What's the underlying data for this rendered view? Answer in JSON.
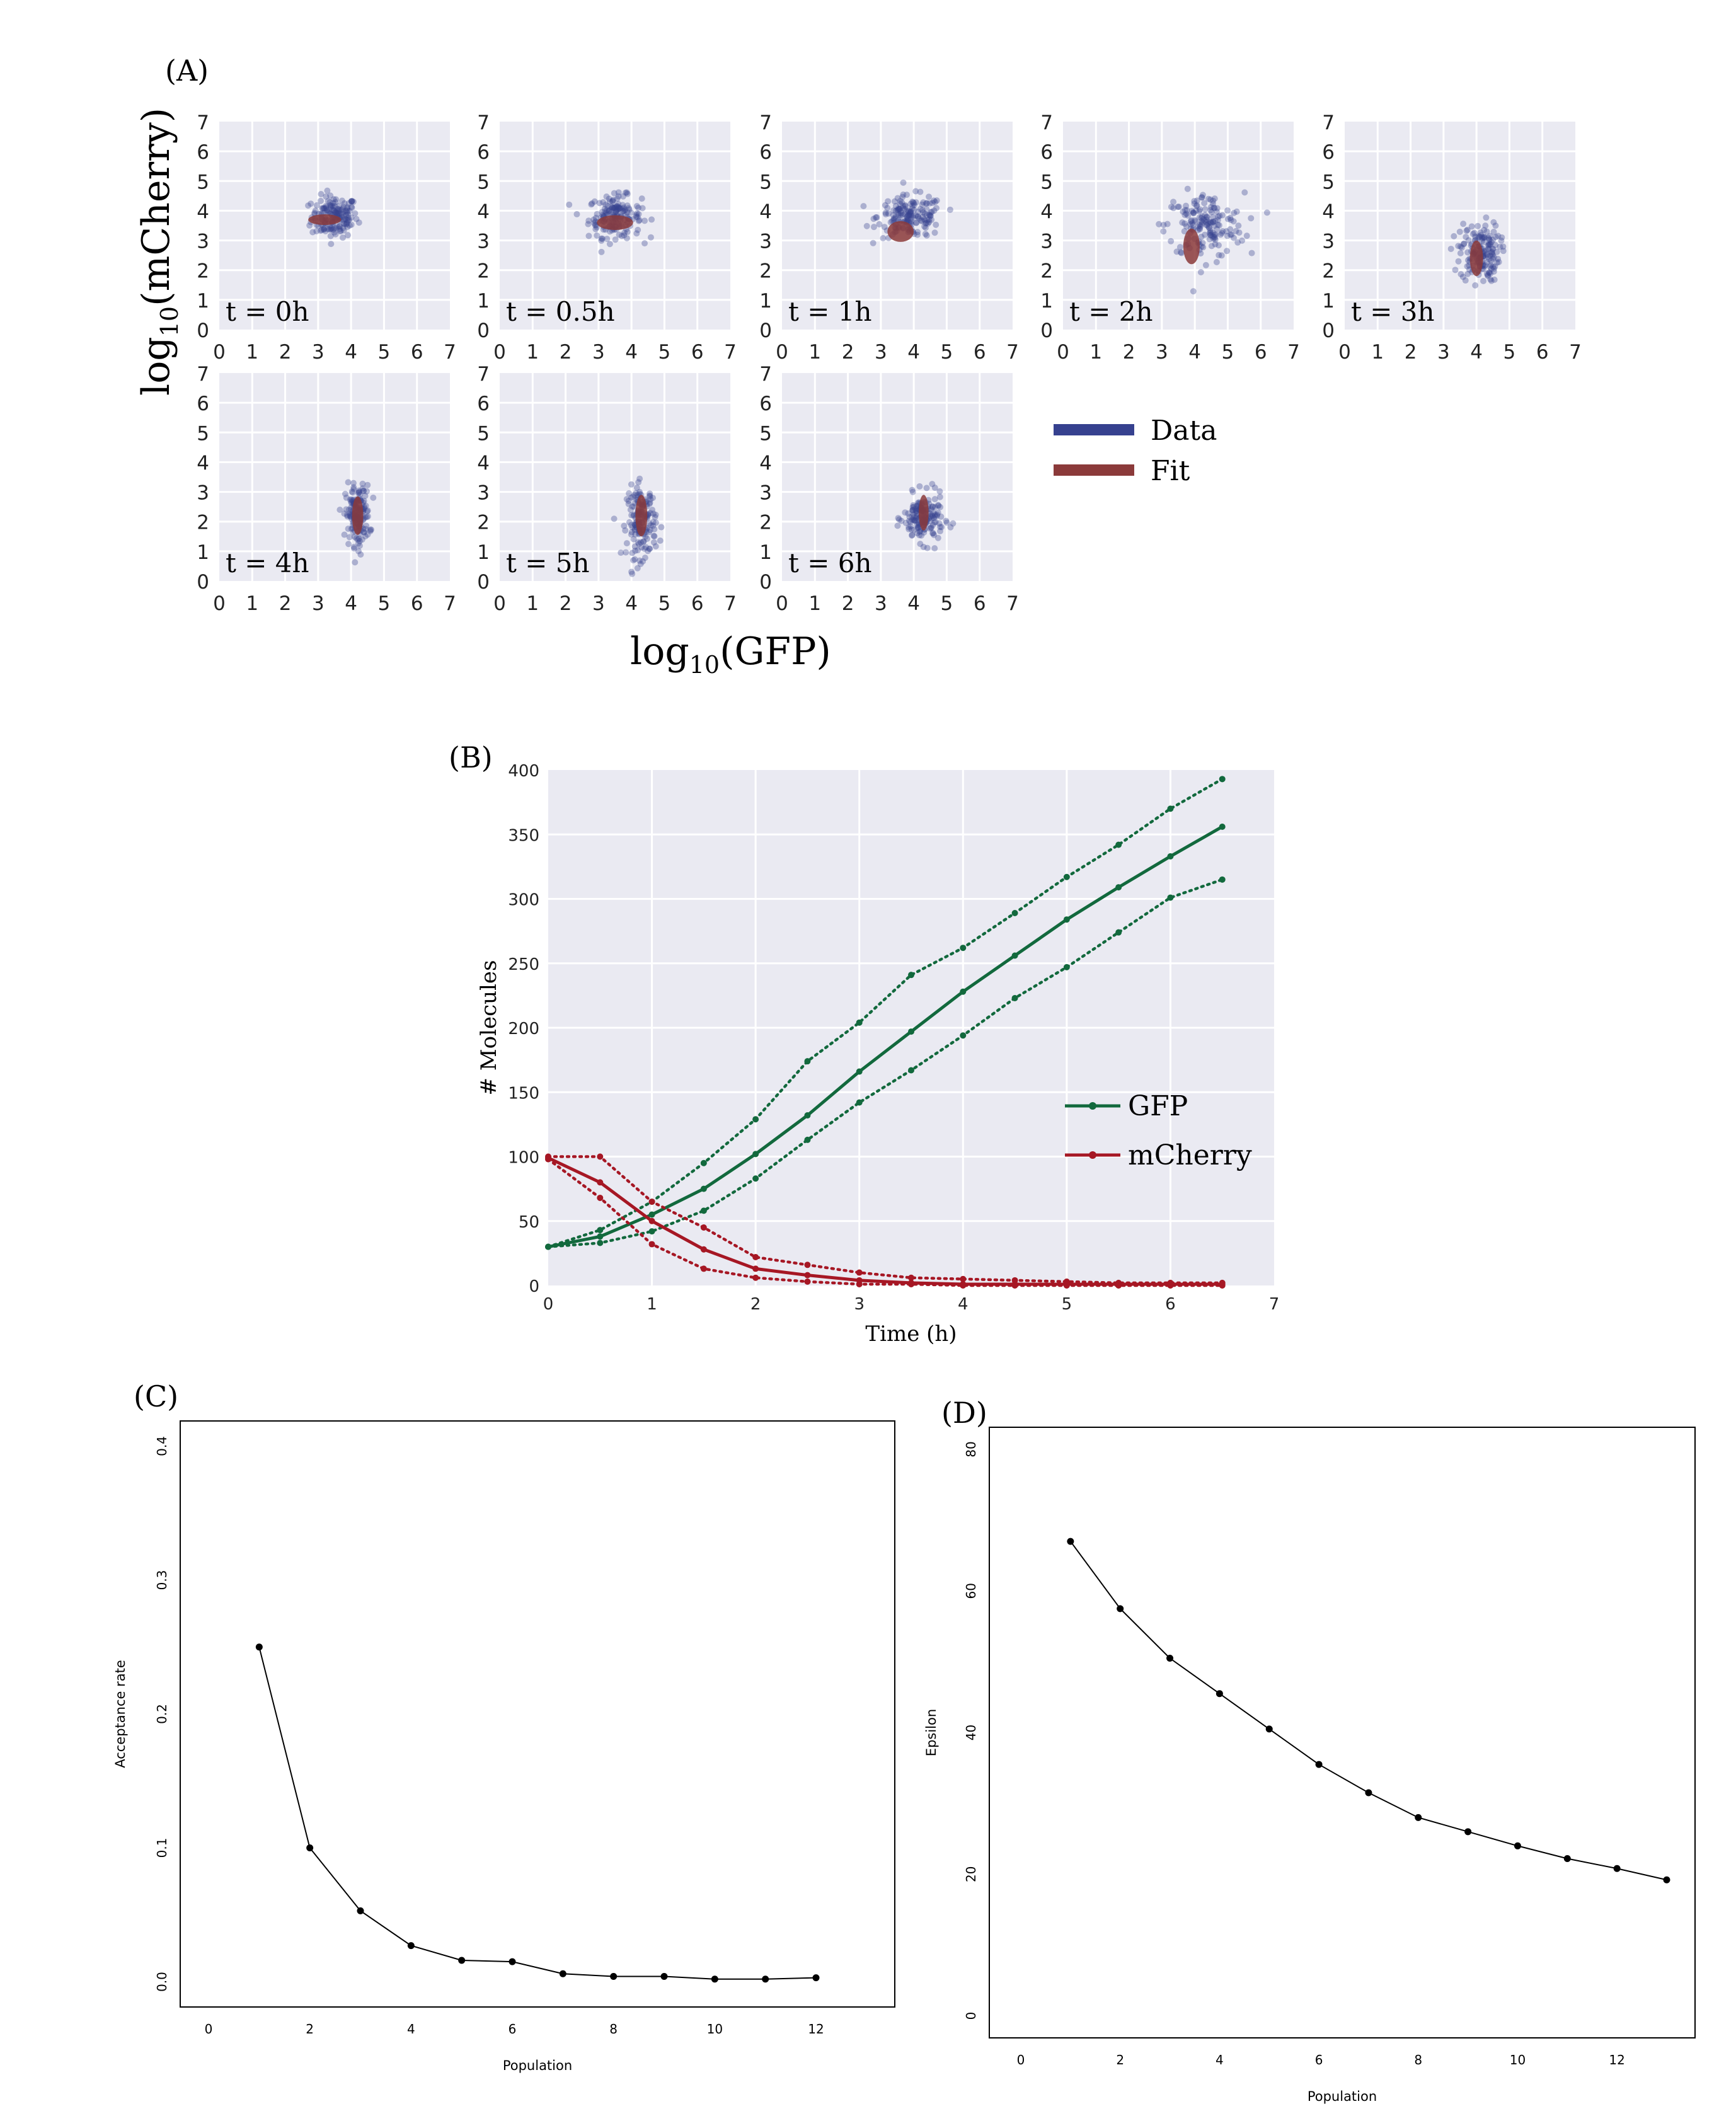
{
  "panel_a": {
    "label": "(A)",
    "ylabel_base": "log",
    "ylabel_sub": "10",
    "ylabel_rest": "(mCherry)",
    "xlabel_base": "log",
    "xlabel_sub": "10",
    "xlabel_rest": "(GFP)",
    "legend": [
      {
        "name": "Data",
        "color": "#36418f"
      },
      {
        "name": "Fit",
        "color": "#8b3a3a"
      }
    ]
  },
  "panel_b_label": "(B)",
  "panel_c_label": "(C)",
  "panel_d_label": "(D)",
  "colors": {
    "bg": "#eaeaf2",
    "data": "#36418f",
    "fit": "#8b3a3a",
    "gfp": "#12693d",
    "mcherry": "#a61724"
  },
  "chart_data": [
    {
      "type": "scatter",
      "id": "A",
      "xlim": [
        0,
        7
      ],
      "ylim": [
        0,
        7
      ],
      "xticks": [
        0,
        1,
        2,
        3,
        4,
        5,
        6,
        7
      ],
      "yticks": [
        0,
        1,
        2,
        3,
        4,
        5,
        6,
        7
      ],
      "grid": true,
      "legend_position": "right",
      "panels": [
        {
          "label": "t = 0h",
          "data": {
            "cx": 3.5,
            "cy": 3.8,
            "sx": 0.35,
            "sy": 0.35
          },
          "fit": {
            "cx": 3.2,
            "cy": 3.7,
            "rx": 0.5,
            "ry": 0.18
          }
        },
        {
          "label": "t = 0.5h",
          "data": {
            "cx": 3.5,
            "cy": 3.8,
            "sx": 0.4,
            "sy": 0.35
          },
          "fit": {
            "cx": 3.5,
            "cy": 3.6,
            "rx": 0.55,
            "ry": 0.25
          }
        },
        {
          "label": "t = 1h",
          "data": {
            "cx": 3.9,
            "cy": 3.8,
            "sx": 0.5,
            "sy": 0.35
          },
          "fit": {
            "cx": 3.6,
            "cy": 3.3,
            "rx": 0.4,
            "ry": 0.35
          }
        },
        {
          "label": "t = 2h",
          "data": {
            "cx": 4.3,
            "cy": 3.5,
            "sx": 0.6,
            "sy": 0.55
          },
          "fit": {
            "cx": 3.9,
            "cy": 2.8,
            "rx": 0.25,
            "ry": 0.6
          }
        },
        {
          "label": "t = 3h",
          "data": {
            "cx": 4.1,
            "cy": 2.6,
            "sx": 0.3,
            "sy": 0.5
          },
          "fit": {
            "cx": 4.0,
            "cy": 2.4,
            "rx": 0.2,
            "ry": 0.6
          }
        },
        {
          "label": "t = 4h",
          "data": {
            "cx": 4.2,
            "cy": 2.2,
            "sx": 0.18,
            "sy": 0.5
          },
          "fit": {
            "cx": 4.2,
            "cy": 2.2,
            "rx": 0.17,
            "ry": 0.65
          }
        },
        {
          "label": "t = 5h",
          "data": {
            "cx": 4.3,
            "cy": 2.0,
            "sx": 0.22,
            "sy": 0.6
          },
          "fit": {
            "cx": 4.3,
            "cy": 2.2,
            "rx": 0.18,
            "ry": 0.7
          }
        },
        {
          "label": "t = 6h",
          "data": {
            "cx": 4.3,
            "cy": 2.1,
            "sx": 0.3,
            "sy": 0.4
          },
          "fit": {
            "cx": 4.3,
            "cy": 2.3,
            "rx": 0.15,
            "ry": 0.6
          }
        }
      ]
    },
    {
      "type": "line",
      "id": "B",
      "xlabel": "Time (h)",
      "ylabel": "# Molecules",
      "xlim": [
        0,
        7
      ],
      "ylim": [
        0,
        400
      ],
      "xticks": [
        0,
        1,
        2,
        3,
        4,
        5,
        6,
        7
      ],
      "yticks": [
        0,
        50,
        100,
        150,
        200,
        250,
        300,
        350,
        400
      ],
      "grid": true,
      "legend_position": "center-right",
      "x": [
        0,
        0.5,
        1,
        1.5,
        2,
        2.5,
        3,
        3.5,
        4,
        4.5,
        5,
        5.5,
        6,
        6.5
      ],
      "series": [
        {
          "name": "GFP",
          "color": "#12693d",
          "mean": [
            30,
            38,
            55,
            75,
            102,
            132,
            166,
            197,
            228,
            256,
            284,
            309,
            333,
            356
          ],
          "upper": [
            30,
            43,
            65,
            95,
            129,
            174,
            204,
            241,
            262,
            289,
            317,
            342,
            370,
            393
          ],
          "lower": [
            30,
            33,
            42,
            58,
            83,
            113,
            142,
            167,
            194,
            223,
            247,
            274,
            301,
            315
          ]
        },
        {
          "name": "mCherry",
          "color": "#a61724",
          "mean": [
            99,
            80,
            50,
            28,
            13,
            8,
            4,
            2,
            1,
            1,
            1,
            1,
            1,
            1
          ],
          "upper": [
            100,
            100,
            65,
            45,
            22,
            16,
            10,
            6,
            5,
            4,
            3,
            2,
            2,
            2
          ],
          "lower": [
            98,
            68,
            32,
            13,
            6,
            3,
            1,
            1,
            0,
            0,
            0,
            0,
            0,
            0
          ]
        }
      ]
    },
    {
      "type": "line",
      "id": "C",
      "xlabel": "Population",
      "ylabel": "Acceptance rate",
      "xlim": [
        0,
        12
      ],
      "ylim": [
        0,
        0.4
      ],
      "xticks": [
        0,
        2,
        4,
        6,
        8,
        10,
        12
      ],
      "yticks": [
        "0.0",
        "0.1",
        "0.2",
        "0.3",
        "0.4"
      ],
      "grid": false,
      "x": [
        1,
        2,
        3,
        4,
        5,
        6,
        7,
        8,
        9,
        10,
        11,
        12
      ],
      "y": [
        0.25,
        0.1,
        0.053,
        0.027,
        0.016,
        0.015,
        0.006,
        0.004,
        0.004,
        0.002,
        0.002,
        0.003
      ]
    },
    {
      "type": "line",
      "id": "D",
      "xlabel": "Population",
      "ylabel": "Epsilon",
      "xlim": [
        0,
        13
      ],
      "ylim": [
        0,
        80
      ],
      "xticks": [
        0,
        2,
        4,
        6,
        8,
        10,
        12
      ],
      "yticks": [
        0,
        20,
        40,
        60,
        80
      ],
      "grid": false,
      "x": [
        1,
        2,
        3,
        4,
        5,
        6,
        7,
        8,
        9,
        10,
        11,
        12,
        13
      ],
      "y": [
        67,
        57.5,
        50.5,
        45.5,
        40.5,
        35.5,
        31.5,
        28,
        26,
        24,
        22.2,
        20.8,
        19.2
      ]
    }
  ]
}
